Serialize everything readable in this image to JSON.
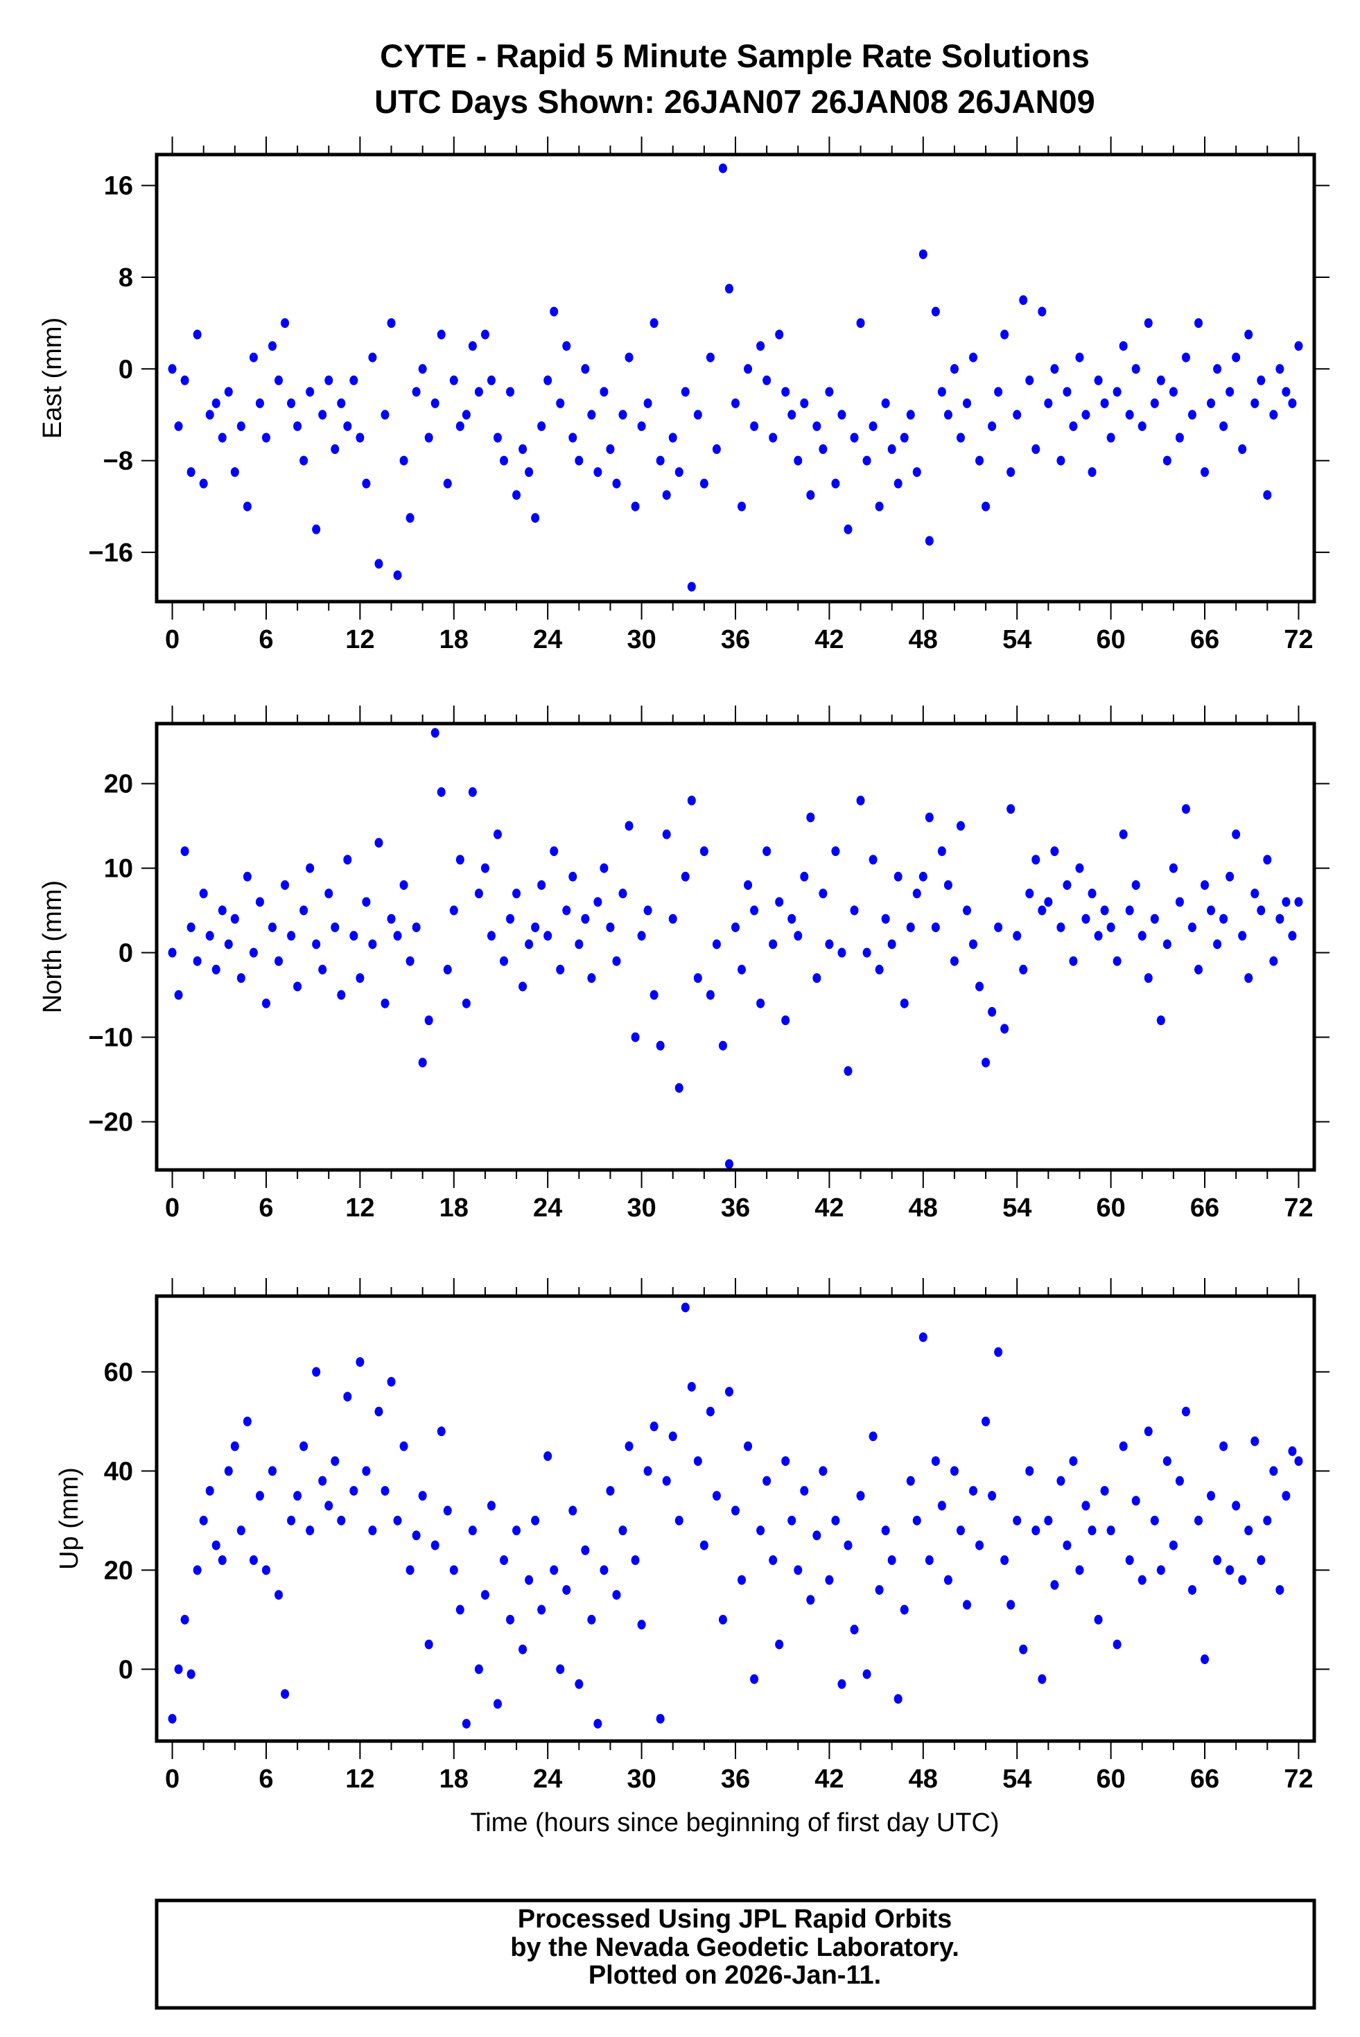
{
  "title_lines": [
    "CYTE - Rapid 5 Minute Sample Rate Solutions",
    "UTC Days Shown:  26JAN07 26JAN08 26JAN09"
  ],
  "footer_lines": [
    "Processed Using JPL Rapid Orbits",
    "by the Nevada Geodetic Laboratory.",
    "Plotted on 2026-Jan-11."
  ],
  "colors": {
    "points": "#0000ff",
    "axes": "#000000"
  },
  "chart_data": [
    {
      "type": "scatter",
      "ylabel": "East (mm)",
      "xlabel": "",
      "xlim": [
        -1,
        73
      ],
      "ylim": [
        -20.3,
        18.7
      ],
      "xticks": [
        0,
        6,
        12,
        18,
        24,
        30,
        36,
        42,
        48,
        54,
        60,
        66,
        72
      ],
      "yticks": [
        16,
        8,
        0,
        -8,
        -16
      ],
      "ytick_labels": [
        "16",
        "8",
        "0",
        "−8",
        "−16"
      ],
      "x": {
        "start": 0,
        "step": 0.4
      },
      "y": [
        0,
        -5,
        -1,
        -9,
        3,
        -10,
        -4,
        -3,
        -6,
        -2,
        -9,
        -5,
        -12,
        1,
        -3,
        -6,
        2,
        -1,
        4,
        -3,
        -5,
        -8,
        -2,
        -14,
        -4,
        -1,
        -7,
        -3,
        -5,
        -1,
        -6,
        -10,
        1,
        -17,
        -4,
        4,
        -18,
        -8,
        -13,
        -2,
        0,
        -6,
        -3,
        3,
        -10,
        -1,
        -5,
        -4,
        2,
        -2,
        3,
        -1,
        -6,
        -8,
        -2,
        -11,
        -7,
        -9,
        -13,
        -5,
        -1,
        5,
        -3,
        2,
        -6,
        -8,
        0,
        -4,
        -9,
        -2,
        -7,
        -10,
        -4,
        1,
        -12,
        -5,
        -3,
        4,
        -8,
        -11,
        -6,
        -9,
        -2,
        -19,
        -4,
        -10,
        1,
        -7,
        17.5,
        7,
        -3,
        -12,
        0,
        -5,
        2,
        -1,
        -6,
        3,
        -2,
        -4,
        -8,
        -3,
        -11,
        -5,
        -7,
        -2,
        -10,
        -4,
        -14,
        -6,
        4,
        -8,
        -5,
        -12,
        -3,
        -7,
        -10,
        -6,
        -4,
        -9,
        10,
        -15,
        5,
        -2,
        -4,
        0,
        -6,
        -3,
        1,
        -8,
        -12,
        -5,
        -2,
        3,
        -9,
        -4,
        6,
        -1,
        -7,
        5,
        -3,
        0,
        -8,
        -2,
        -5,
        1,
        -4,
        -9,
        -1,
        -3,
        -6,
        -2,
        2,
        -4,
        0,
        -5,
        4,
        -3,
        -1,
        -8,
        -2,
        -6,
        1,
        -4,
        4,
        -9,
        -3,
        0,
        -5,
        -2,
        1,
        -7,
        3,
        -3,
        -1,
        -11,
        -4,
        0,
        -2,
        -3,
        2
      ]
    },
    {
      "type": "scatter",
      "ylabel": "North (mm)",
      "xlabel": "",
      "xlim": [
        -1,
        73
      ],
      "ylim": [
        -25.7,
        27.1
      ],
      "xticks": [
        0,
        6,
        12,
        18,
        24,
        30,
        36,
        42,
        48,
        54,
        60,
        66,
        72
      ],
      "yticks": [
        20,
        10,
        0,
        -10,
        -20
      ],
      "ytick_labels": [
        "20",
        "10",
        "0",
        "−10",
        "−20"
      ],
      "x": {
        "start": 0,
        "step": 0.4
      },
      "y": [
        0,
        -5,
        12,
        3,
        -1,
        7,
        2,
        -2,
        5,
        1,
        4,
        -3,
        9,
        0,
        6,
        -6,
        3,
        -1,
        8,
        2,
        -4,
        5,
        10,
        1,
        -2,
        7,
        3,
        -5,
        11,
        2,
        -3,
        6,
        1,
        13,
        -6,
        4,
        2,
        8,
        -1,
        3,
        -13,
        -8,
        26,
        19,
        -2,
        5,
        11,
        -6,
        19,
        7,
        10,
        2,
        14,
        -1,
        4,
        7,
        -4,
        1,
        3,
        8,
        2,
        12,
        -2,
        5,
        9,
        1,
        4,
        -3,
        6,
        10,
        3,
        -1,
        7,
        15,
        -10,
        2,
        5,
        -5,
        -11,
        14,
        4,
        -16,
        9,
        18,
        -3,
        12,
        -5,
        1,
        -11,
        -25,
        3,
        -2,
        8,
        5,
        -6,
        12,
        1,
        6,
        -8,
        4,
        2,
        9,
        16,
        -3,
        7,
        1,
        12,
        0,
        -14,
        5,
        18,
        0,
        11,
        -2,
        4,
        1,
        9,
        -6,
        3,
        7,
        9,
        16,
        3,
        12,
        8,
        -1,
        15,
        5,
        1,
        -4,
        -13,
        -7,
        3,
        -9,
        17,
        2,
        -2,
        7,
        11,
        5,
        6,
        12,
        3,
        8,
        -1,
        10,
        4,
        7,
        2,
        5,
        3,
        -1,
        14,
        5,
        8,
        2,
        -3,
        4,
        -8,
        1,
        10,
        6,
        17,
        3,
        -2,
        8,
        5,
        1,
        4,
        9,
        14,
        2,
        -3,
        7,
        5,
        11,
        -1,
        4,
        6,
        2,
        6
      ]
    },
    {
      "type": "scatter",
      "ylabel": "Up (mm)",
      "xlabel": "Time (hours since beginning of first day UTC)",
      "xlim": [
        -1,
        73
      ],
      "ylim": [
        -14.5,
        75.3
      ],
      "xticks": [
        0,
        6,
        12,
        18,
        24,
        30,
        36,
        42,
        48,
        54,
        60,
        66,
        72
      ],
      "yticks": [
        60,
        40,
        20,
        0
      ],
      "ytick_labels": [
        "60",
        "40",
        "20",
        "0"
      ],
      "x": {
        "start": 0,
        "step": 0.4
      },
      "y": [
        -10,
        0,
        10,
        -1,
        20,
        30,
        36,
        25,
        22,
        40,
        45,
        28,
        50,
        22,
        35,
        20,
        40,
        15,
        -5,
        30,
        35,
        45,
        28,
        60,
        38,
        33,
        42,
        30,
        55,
        36,
        62,
        40,
        28,
        52,
        36,
        58,
        30,
        45,
        20,
        27,
        35,
        5,
        25,
        48,
        32,
        20,
        12,
        -11,
        28,
        0,
        15,
        33,
        -7,
        22,
        10,
        28,
        4,
        18,
        30,
        12,
        43,
        20,
        0,
        16,
        32,
        -3,
        24,
        10,
        -11,
        20,
        36,
        15,
        28,
        45,
        22,
        9,
        40,
        49,
        -10,
        38,
        47,
        30,
        73,
        57,
        42,
        25,
        52,
        35,
        10,
        56,
        32,
        18,
        45,
        -2,
        28,
        38,
        22,
        5,
        42,
        30,
        20,
        36,
        14,
        27,
        40,
        18,
        30,
        -3,
        25,
        8,
        35,
        -1,
        47,
        16,
        28,
        22,
        -6,
        12,
        38,
        30,
        67,
        22,
        42,
        33,
        18,
        40,
        28,
        13,
        36,
        25,
        50,
        35,
        64,
        22,
        13,
        30,
        4,
        40,
        28,
        -2,
        30,
        17,
        38,
        25,
        42,
        20,
        33,
        28,
        10,
        36,
        28,
        5,
        45,
        22,
        34,
        18,
        48,
        30,
        20,
        42,
        25,
        38,
        52,
        16,
        30,
        2,
        35,
        22,
        45,
        20,
        33,
        18,
        28,
        46,
        22,
        30,
        40,
        16,
        35,
        44,
        42
      ]
    }
  ]
}
